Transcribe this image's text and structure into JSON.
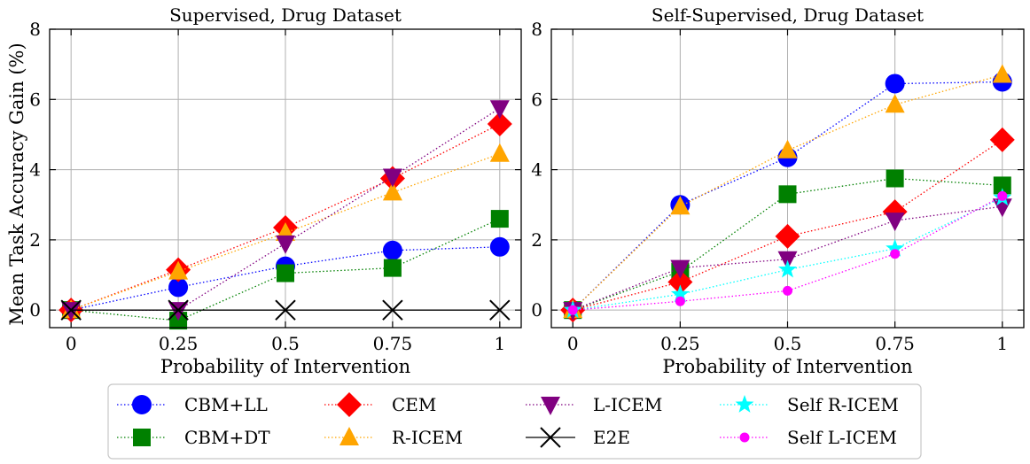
{
  "figure": {
    "ylabel": "Mean Task Accuracy Gain (%)",
    "xlabel": "Probability of Intervention"
  },
  "legend": {
    "placement": "bottom-center",
    "columns": 4
  },
  "chart_data": [
    {
      "type": "line",
      "title": "Supervised, Drug Dataset",
      "xlabel": "Probability of Intervention",
      "ylabel": "Mean Task Accuracy Gain (%)",
      "x": [
        0,
        0.25,
        0.5,
        0.75,
        1
      ],
      "x_tick_labels": [
        "0",
        "0.25",
        "0.5",
        "0.75",
        "1"
      ],
      "xlim": [
        -0.05,
        1.05
      ],
      "ylim": [
        -0.5,
        8
      ],
      "y_ticks": [
        "0",
        "2",
        "4",
        "6",
        "8"
      ],
      "grid": true,
      "series": [
        {
          "name": "CBM+LL",
          "color": "#0000ff",
          "marker": "circle",
          "values": [
            0,
            0.65,
            1.25,
            1.7,
            1.8
          ]
        },
        {
          "name": "CBM+DT",
          "color": "#008000",
          "marker": "square",
          "values": [
            0,
            -0.3,
            1.05,
            1.2,
            2.6
          ]
        },
        {
          "name": "CEM",
          "color": "#ff0000",
          "marker": "diamond",
          "values": [
            0,
            1.15,
            2.35,
            3.75,
            5.3
          ]
        },
        {
          "name": "R-ICEM",
          "color": "#ffa500",
          "marker": "triangle-up",
          "values": [
            0,
            1.1,
            2.2,
            3.35,
            4.45
          ]
        },
        {
          "name": "L-ICEM",
          "color": "#800080",
          "marker": "triangle-down",
          "values": [
            0,
            0,
            1.9,
            3.8,
            5.75
          ]
        },
        {
          "name": "E2E",
          "color": "#000000",
          "marker": "x",
          "line": "solid",
          "values": [
            0,
            0,
            0,
            0,
            0
          ]
        }
      ]
    },
    {
      "type": "line",
      "title": "Self-Supervised, Drug Dataset",
      "xlabel": "Probability of Intervention",
      "x": [
        0,
        0.25,
        0.5,
        0.75,
        1
      ],
      "x_tick_labels": [
        "0",
        "0.25",
        "0.5",
        "0.75",
        "1"
      ],
      "xlim": [
        -0.05,
        1.05
      ],
      "ylim": [
        -0.5,
        8
      ],
      "y_ticks": [
        "0",
        "2",
        "4",
        "6",
        "8"
      ],
      "grid": true,
      "series": [
        {
          "name": "CBM+LL",
          "color": "#0000ff",
          "marker": "circle",
          "values": [
            0,
            3.0,
            4.35,
            6.45,
            6.5
          ]
        },
        {
          "name": "CBM+DT",
          "color": "#008000",
          "marker": "square",
          "values": [
            0,
            1.1,
            3.3,
            3.75,
            3.55
          ]
        },
        {
          "name": "CEM",
          "color": "#ff0000",
          "marker": "diamond",
          "values": [
            0,
            0.8,
            2.1,
            2.8,
            4.85
          ]
        },
        {
          "name": "R-ICEM",
          "color": "#ffa500",
          "marker": "triangle-up",
          "values": [
            0,
            2.95,
            4.55,
            5.85,
            6.7
          ]
        },
        {
          "name": "L-ICEM",
          "color": "#800080",
          "marker": "triangle-down",
          "values": [
            0,
            1.2,
            1.45,
            2.55,
            2.95
          ]
        },
        {
          "name": "Self R-ICEM",
          "color": "#00ffff",
          "marker": "star",
          "values": [
            0,
            0.45,
            1.15,
            1.75,
            3.2
          ]
        },
        {
          "name": "Self L-ICEM",
          "color": "#ff00ff",
          "marker": "circle-small",
          "values": [
            0,
            0.25,
            0.55,
            1.6,
            3.25
          ]
        }
      ]
    }
  ],
  "legend_entries": [
    {
      "name": "CBM+LL",
      "color": "#0000ff",
      "marker": "circle"
    },
    {
      "name": "CBM+DT",
      "color": "#008000",
      "marker": "square"
    },
    {
      "name": "CEM",
      "color": "#ff0000",
      "marker": "diamond"
    },
    {
      "name": "R-ICEM",
      "color": "#ffa500",
      "marker": "triangle-up"
    },
    {
      "name": "L-ICEM",
      "color": "#800080",
      "marker": "triangle-down"
    },
    {
      "name": "E2E",
      "color": "#000000",
      "marker": "x",
      "line": "solid"
    },
    {
      "name": "Self R-ICEM",
      "color": "#00ffff",
      "marker": "star"
    },
    {
      "name": "Self L-ICEM",
      "color": "#ff00ff",
      "marker": "circle-small"
    }
  ]
}
